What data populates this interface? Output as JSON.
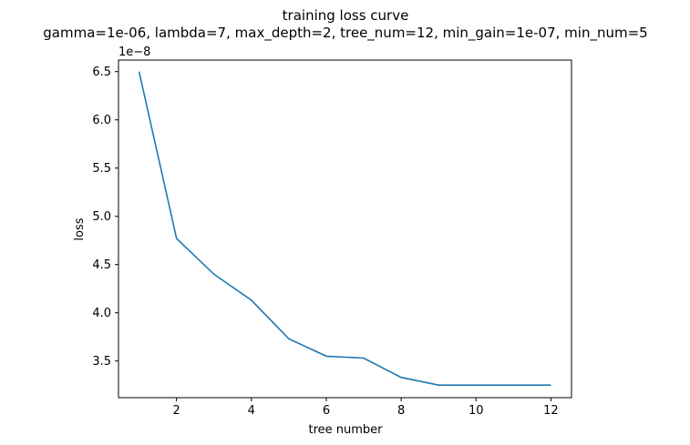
{
  "chart_data": {
    "type": "line",
    "title": "training loss curve",
    "subtitle": "gamma=1e-06, lambda=7, max_depth=2, tree_num=12, min_gain=1e-07, min_num=5",
    "xlabel": "tree number",
    "ylabel": "loss",
    "y_offset_label": "1e−8",
    "xlim": [
      0.45,
      12.55
    ],
    "ylim": [
      3.12,
      6.62
    ],
    "xticks": [
      2,
      4,
      6,
      8,
      10,
      12
    ],
    "yticks": [
      3.5,
      4.0,
      4.5,
      5.0,
      5.5,
      6.0,
      6.5
    ],
    "ytick_labels": [
      "3.5",
      "4.0",
      "4.5",
      "5.0",
      "5.5",
      "6.0",
      "6.5"
    ],
    "grid": false,
    "series": [
      {
        "color": "#1f77b4",
        "x": [
          1,
          2,
          3,
          4,
          5,
          6,
          7,
          8,
          9,
          10,
          11,
          12
        ],
        "y": [
          6.5,
          4.77,
          4.4,
          4.13,
          3.73,
          3.55,
          3.53,
          3.33,
          3.25,
          3.25,
          3.25,
          3.25
        ]
      }
    ]
  }
}
